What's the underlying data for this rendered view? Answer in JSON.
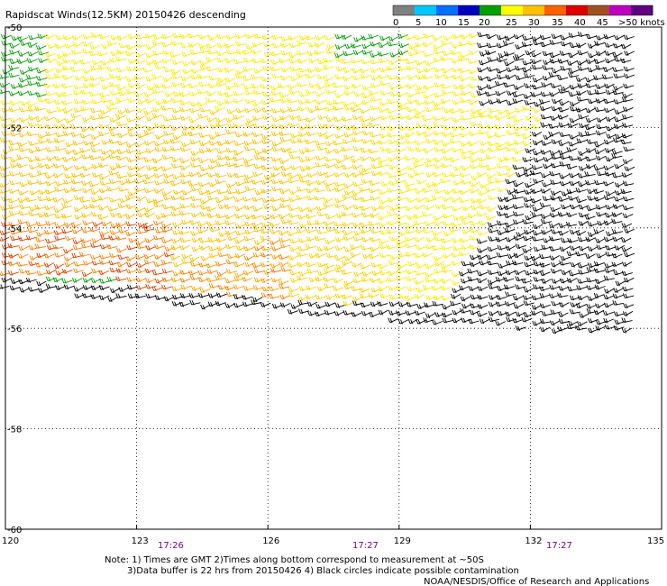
{
  "title": "Rapidscat Winds(12.5KM) 20150426 descending",
  "legend": {
    "ticks": [
      "0",
      "5",
      "10",
      "15",
      "20",
      "25",
      "30",
      "35",
      "40",
      "45",
      ">50 knots"
    ],
    "colors": [
      "#808080",
      "#00c8ff",
      "#0070ff",
      "#0000c0",
      "#00a000",
      "#ffff00",
      "#ffc000",
      "#ff6000",
      "#e00000",
      "#a05020",
      "#c000c0",
      "#600080"
    ]
  },
  "axes": {
    "lat_labels": [
      "-50",
      "-52",
      "-54",
      "-56",
      "-58",
      "-60"
    ],
    "lon_labels": [
      "120",
      "123",
      "126",
      "129",
      "132",
      "135"
    ]
  },
  "times": [
    "17:26",
    "17:27",
    "17:27"
  ],
  "notes": {
    "line1": "Note: 1) Times are GMT 2)Times along bottom correspond to measurement at ~50S",
    "line2": "3)Data buffer is 22 hrs from 20150426 4) Black circles indicate possible contamination",
    "credit": "NOAA/NESDIS/Office of Research and Applications"
  },
  "colors": {
    "frame": "#000000",
    "grid": "#000000",
    "time_text": "#7a0088"
  }
}
